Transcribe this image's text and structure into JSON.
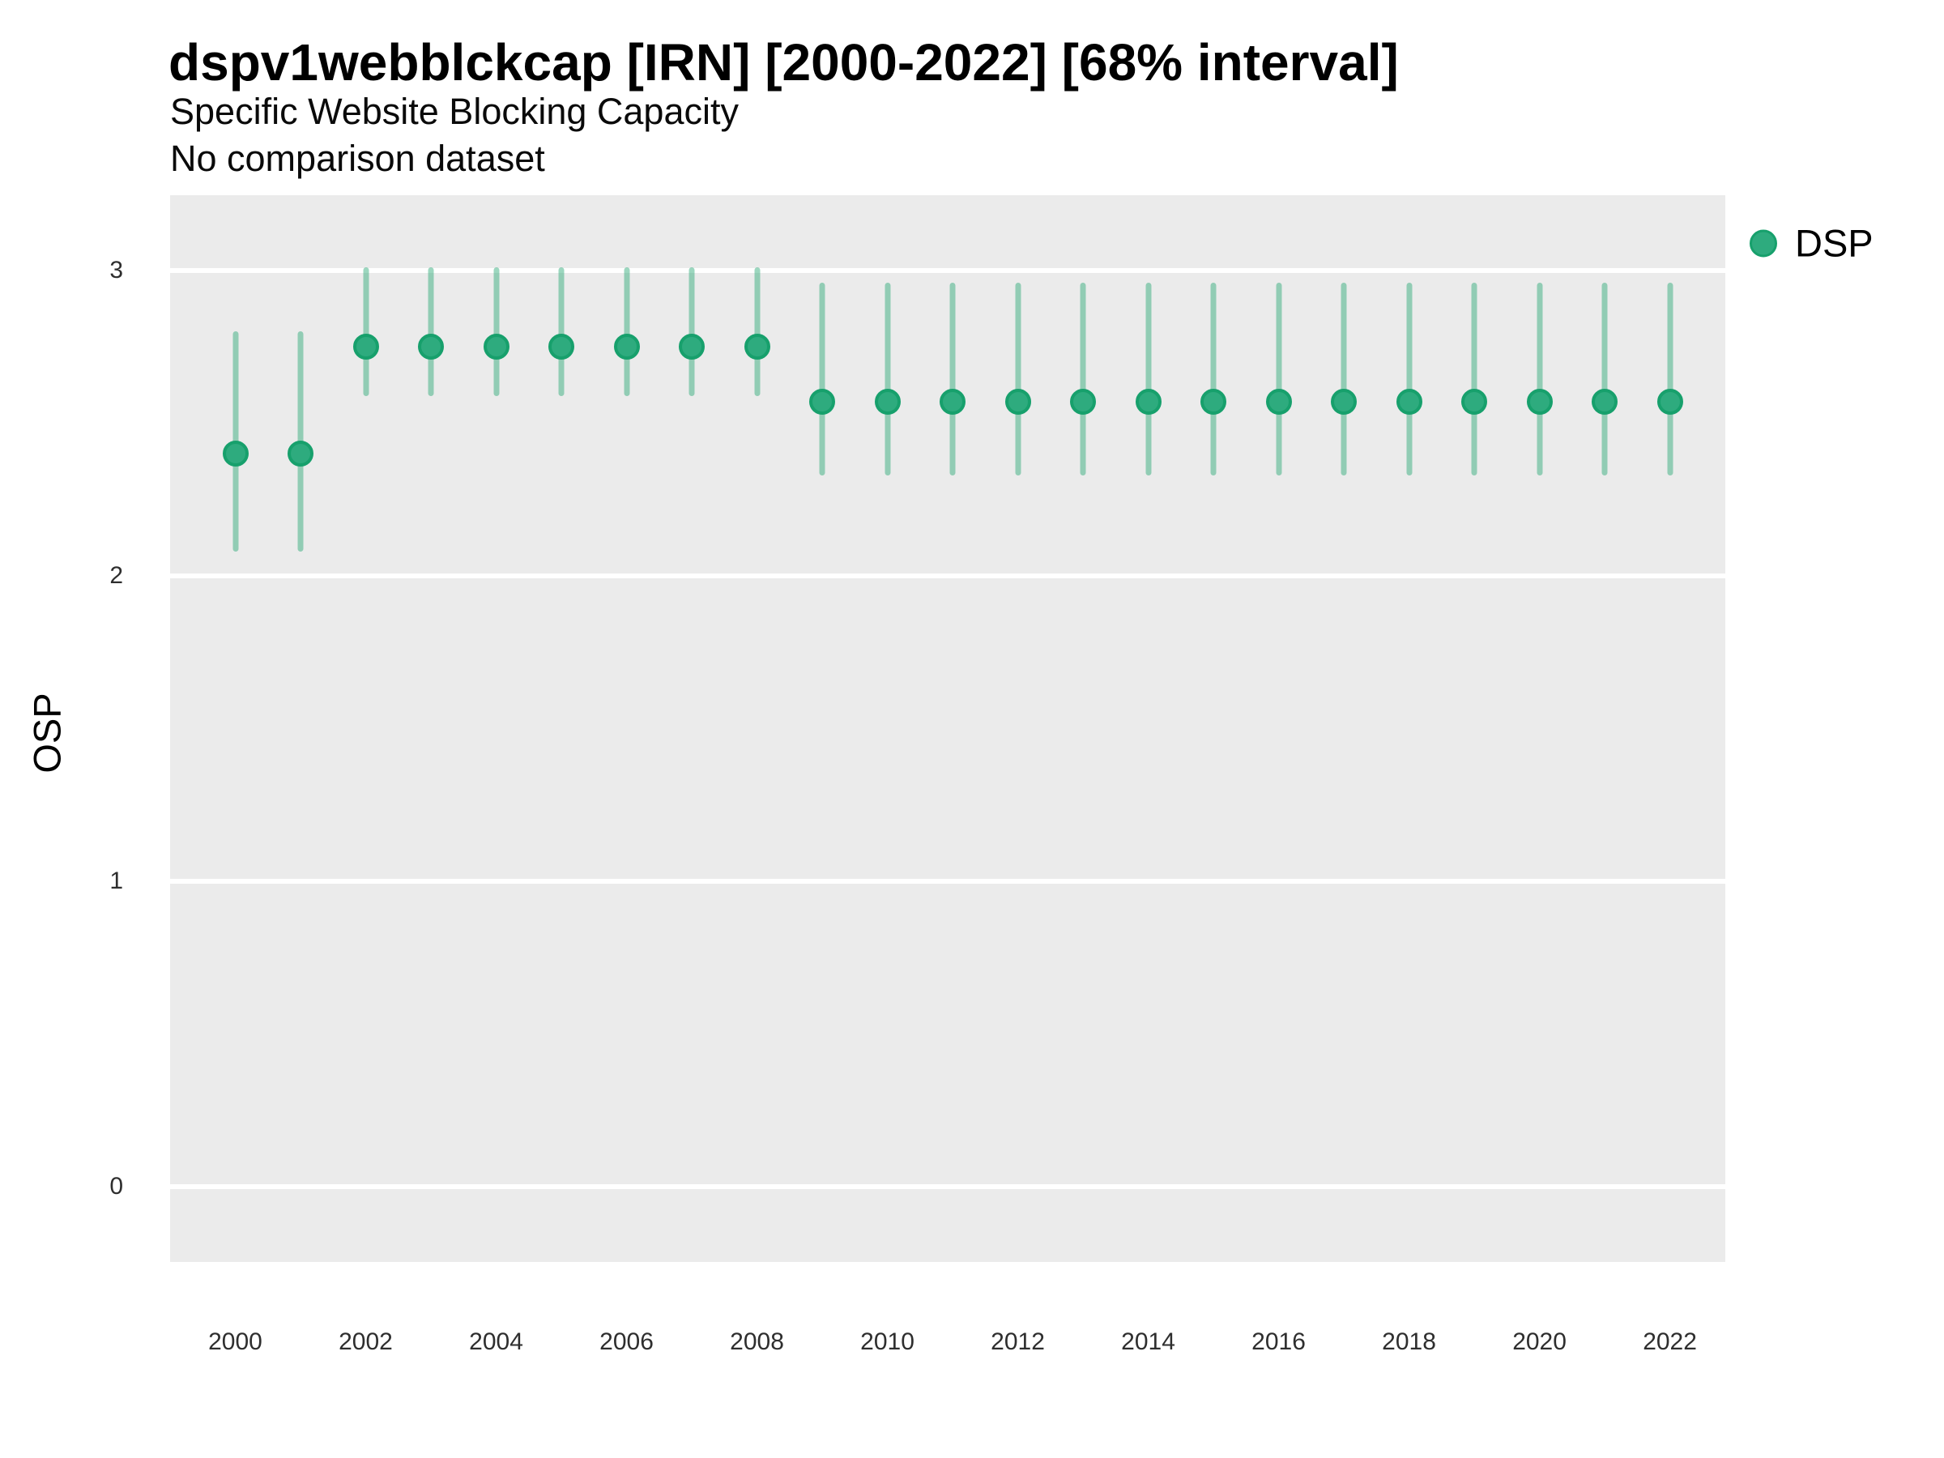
{
  "chart_data": {
    "type": "scatter",
    "variant": "pointrange",
    "title": "dspv1webblckcap [IRN] [2000-2022] [68% interval]",
    "subtitle": "Specific Website Blocking Capacity",
    "note": "No comparison dataset",
    "xlabel": "",
    "ylabel": "OSP",
    "interval": "68%",
    "xlim": [
      1999,
      2022.85
    ],
    "ylim": [
      -0.247,
      3.247
    ],
    "x_ticks": [
      2000,
      2002,
      2004,
      2006,
      2008,
      2010,
      2012,
      2014,
      2016,
      2018,
      2020,
      2022
    ],
    "y_ticks": [
      0,
      1,
      2,
      3
    ],
    "grid": "horizontal-major-only",
    "panel_background": "#ebebeb",
    "gridline_color": "#ffffff",
    "legend_position": "right-top",
    "colors": {
      "point_fill": "#2eab7e",
      "point_ring": "#17a06c",
      "interval_bar": "rgba(35, 167, 114, 0.45)"
    },
    "series": [
      {
        "name": "DSP",
        "points": [
          {
            "year": 2000,
            "value": 2.4,
            "lo": 2.08,
            "hi": 2.8
          },
          {
            "year": 2001,
            "value": 2.4,
            "lo": 2.08,
            "hi": 2.8
          },
          {
            "year": 2002,
            "value": 2.75,
            "lo": 2.59,
            "hi": 3.01
          },
          {
            "year": 2003,
            "value": 2.75,
            "lo": 2.59,
            "hi": 3.01
          },
          {
            "year": 2004,
            "value": 2.75,
            "lo": 2.59,
            "hi": 3.01
          },
          {
            "year": 2005,
            "value": 2.75,
            "lo": 2.59,
            "hi": 3.01
          },
          {
            "year": 2006,
            "value": 2.75,
            "lo": 2.59,
            "hi": 3.01
          },
          {
            "year": 2007,
            "value": 2.75,
            "lo": 2.59,
            "hi": 3.01
          },
          {
            "year": 2008,
            "value": 2.75,
            "lo": 2.59,
            "hi": 3.01
          },
          {
            "year": 2009,
            "value": 2.57,
            "lo": 2.33,
            "hi": 2.96
          },
          {
            "year": 2010,
            "value": 2.57,
            "lo": 2.33,
            "hi": 2.96
          },
          {
            "year": 2011,
            "value": 2.57,
            "lo": 2.33,
            "hi": 2.96
          },
          {
            "year": 2012,
            "value": 2.57,
            "lo": 2.33,
            "hi": 2.96
          },
          {
            "year": 2013,
            "value": 2.57,
            "lo": 2.33,
            "hi": 2.96
          },
          {
            "year": 2014,
            "value": 2.57,
            "lo": 2.33,
            "hi": 2.96
          },
          {
            "year": 2015,
            "value": 2.57,
            "lo": 2.33,
            "hi": 2.96
          },
          {
            "year": 2016,
            "value": 2.57,
            "lo": 2.33,
            "hi": 2.96
          },
          {
            "year": 2017,
            "value": 2.57,
            "lo": 2.33,
            "hi": 2.96
          },
          {
            "year": 2018,
            "value": 2.57,
            "lo": 2.33,
            "hi": 2.96
          },
          {
            "year": 2019,
            "value": 2.57,
            "lo": 2.33,
            "hi": 2.96
          },
          {
            "year": 2020,
            "value": 2.57,
            "lo": 2.33,
            "hi": 2.96
          },
          {
            "year": 2021,
            "value": 2.57,
            "lo": 2.33,
            "hi": 2.96
          },
          {
            "year": 2022,
            "value": 2.57,
            "lo": 2.33,
            "hi": 2.96
          }
        ]
      }
    ]
  }
}
